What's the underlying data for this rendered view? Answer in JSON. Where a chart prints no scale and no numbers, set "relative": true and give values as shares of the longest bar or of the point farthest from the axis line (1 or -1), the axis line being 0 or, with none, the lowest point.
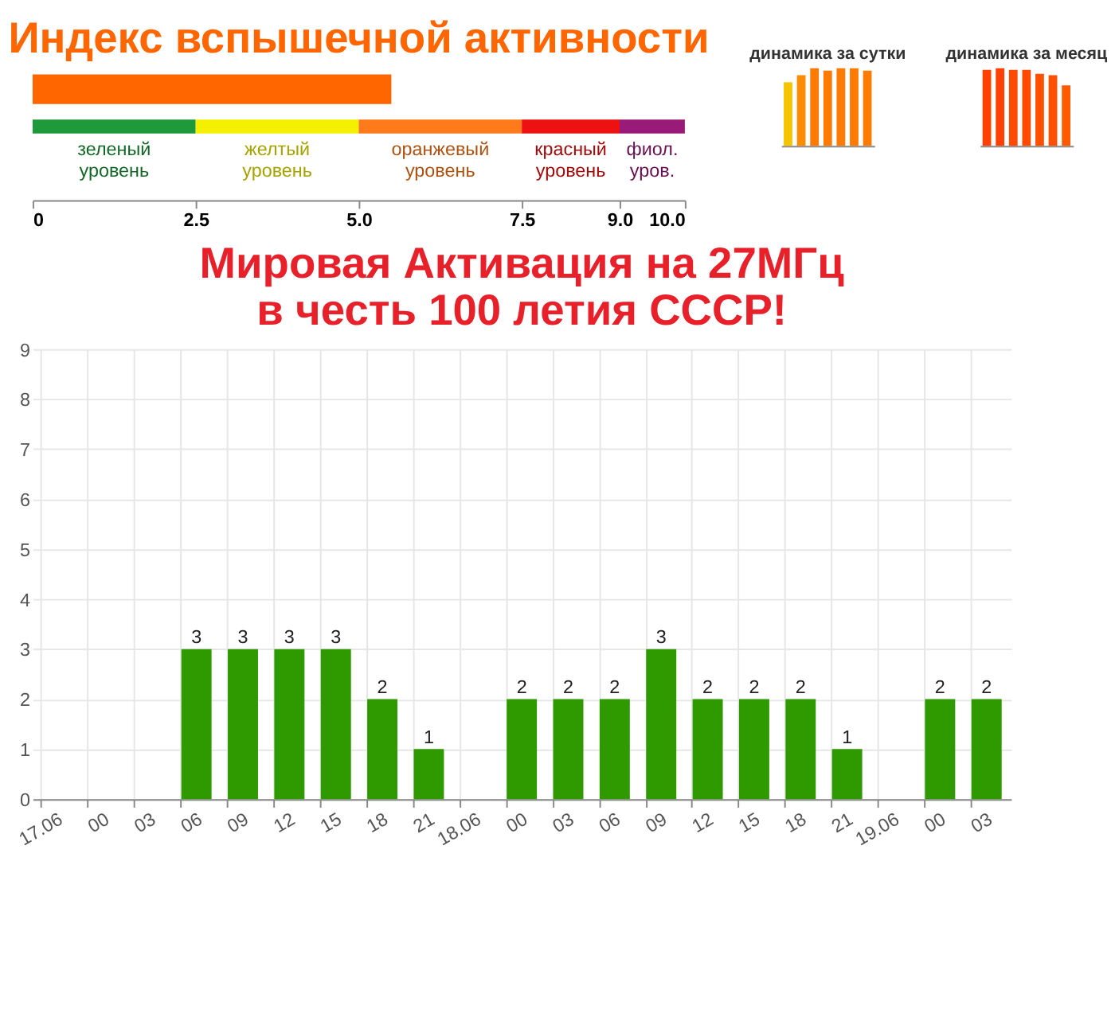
{
  "chart_data": [
    {
      "type": "bar",
      "orientation": "horizontal",
      "title": "Индекс вспышечной активности",
      "categories": [
        null
      ],
      "values": [
        5.5
      ],
      "color": "#ff6600",
      "xlim": [
        0,
        10
      ],
      "xticks": [
        0,
        2.5,
        {
          "value": 5,
          "label": "5.0"
        },
        7.5,
        {
          "value": 9,
          "label": "9.0"
        },
        {
          "value": 10,
          "label": "10.0"
        }
      ],
      "grid": false,
      "bands": [
        {
          "axis": "x",
          "from": 0,
          "to": 2.5,
          "label": "зеленый уровень",
          "color": "#1e9a3a"
        },
        {
          "axis": "x",
          "from": 2.5,
          "to": 5,
          "label": "желтый уровень",
          "color": "#f5f000"
        },
        {
          "axis": "x",
          "from": 5,
          "to": 7.5,
          "label": "оранжевый уровень",
          "color": "#ff7a1a"
        },
        {
          "axis": "x",
          "from": 7.5,
          "to": 9,
          "label": "красный уровень",
          "color": "#ee1111"
        },
        {
          "axis": "x",
          "from": 9,
          "to": 10,
          "label": "фиол. уров.",
          "color": "#9a1a7a"
        }
      ]
    },
    {
      "type": "bar",
      "relative": true,
      "title": "динамика за сутки",
      "categories": [
        null,
        null,
        null,
        null,
        null,
        null,
        null
      ],
      "values": [
        0.82,
        0.91,
        1,
        0.97,
        1,
        1,
        0.97
      ],
      "colors": [
        "#f5c400",
        "#ff8c00",
        "#ff7a00",
        "#ff7a00",
        "#ff7a00",
        "#ff7a00",
        "#ff7a00"
      ],
      "grid": false
    },
    {
      "type": "bar",
      "relative": true,
      "title": "динамика за месяц",
      "categories": [
        null,
        null,
        null,
        null,
        null,
        null,
        null
      ],
      "values": [
        0.98,
        1,
        0.98,
        0.98,
        0.93,
        0.91,
        0.78
      ],
      "colors": [
        "#ff4000",
        "#ff4000",
        "#ff4a00",
        "#ff4a00",
        "#ff5000",
        "#ff5000",
        "#ff5a00"
      ],
      "grid": false
    },
    {
      "type": "bar",
      "title": "Мировая Активация на 27МГц в честь 100 летия СССР!",
      "categories": [
        "17.06",
        "00",
        "03",
        "06",
        "09",
        "12",
        "15",
        "18",
        "21",
        "18.06",
        "00",
        "03",
        "06",
        "09",
        "12",
        "15",
        "18",
        "21",
        "19.06",
        "00",
        "03"
      ],
      "values": [
        0,
        0,
        0,
        3,
        3,
        3,
        3,
        2,
        1,
        0,
        2,
        2,
        2,
        3,
        2,
        2,
        2,
        1,
        0,
        2,
        2
      ],
      "value_labels": [
        null,
        null,
        null,
        "3",
        "3",
        "3",
        "3",
        "2",
        "1",
        null,
        "2",
        "2",
        "2",
        "3",
        "2",
        "2",
        "2",
        "1",
        null,
        "2",
        "2"
      ],
      "color": "#2e9a00",
      "ylim": [
        0,
        9
      ],
      "yticks": [
        0,
        1,
        2,
        3,
        4,
        5,
        6,
        7,
        8,
        9
      ],
      "grid": true
    }
  ]
}
